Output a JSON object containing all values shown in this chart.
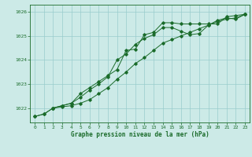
{
  "title": "Graphe pression niveau de la mer (hPa)",
  "bg_color": "#cceae7",
  "grid_color": "#99cccc",
  "line_color": "#1a6b2a",
  "xlim": [
    -0.5,
    23.5
  ],
  "ylim": [
    1021.4,
    1026.3
  ],
  "yticks": [
    1022,
    1023,
    1024,
    1025,
    1026
  ],
  "xticks": [
    0,
    1,
    2,
    3,
    4,
    5,
    6,
    7,
    8,
    9,
    10,
    11,
    12,
    13,
    14,
    15,
    16,
    17,
    18,
    19,
    20,
    21,
    22,
    23
  ],
  "series1_x": [
    0,
    1,
    2,
    3,
    4,
    5,
    6,
    7,
    8,
    9,
    10,
    11,
    12,
    13,
    14,
    15,
    16,
    17,
    18,
    19,
    20,
    21,
    22,
    23
  ],
  "series1_y": [
    1021.65,
    1021.75,
    1022.0,
    1022.1,
    1022.2,
    1022.45,
    1022.75,
    1023.0,
    1023.3,
    1024.0,
    1024.25,
    1024.65,
    1024.9,
    1025.05,
    1025.35,
    1025.35,
    1025.2,
    1025.05,
    1025.1,
    1025.45,
    1025.65,
    1025.75,
    1025.7,
    1025.9
  ],
  "series2_x": [
    0,
    1,
    2,
    3,
    4,
    5,
    6,
    7,
    8,
    9,
    10,
    11,
    12,
    13,
    14,
    15,
    16,
    17,
    18,
    19,
    20,
    21,
    22,
    23
  ],
  "series2_y": [
    1021.65,
    1021.75,
    1022.0,
    1022.05,
    1022.1,
    1022.2,
    1022.35,
    1022.6,
    1022.85,
    1023.2,
    1023.5,
    1023.85,
    1024.1,
    1024.4,
    1024.7,
    1024.85,
    1025.0,
    1025.15,
    1025.3,
    1025.45,
    1025.6,
    1025.7,
    1025.75,
    1025.9
  ],
  "series3_x": [
    2,
    3,
    4,
    5,
    6,
    7,
    8,
    9,
    10,
    11,
    12,
    13,
    14,
    15,
    16,
    17,
    18,
    19,
    20,
    21,
    22,
    23
  ],
  "series3_y": [
    1022.0,
    1022.1,
    1022.2,
    1022.6,
    1022.85,
    1023.1,
    1023.35,
    1023.6,
    1024.4,
    1024.45,
    1025.05,
    1025.15,
    1025.55,
    1025.55,
    1025.5,
    1025.5,
    1025.5,
    1025.5,
    1025.5,
    1025.8,
    1025.85,
    1025.9
  ]
}
